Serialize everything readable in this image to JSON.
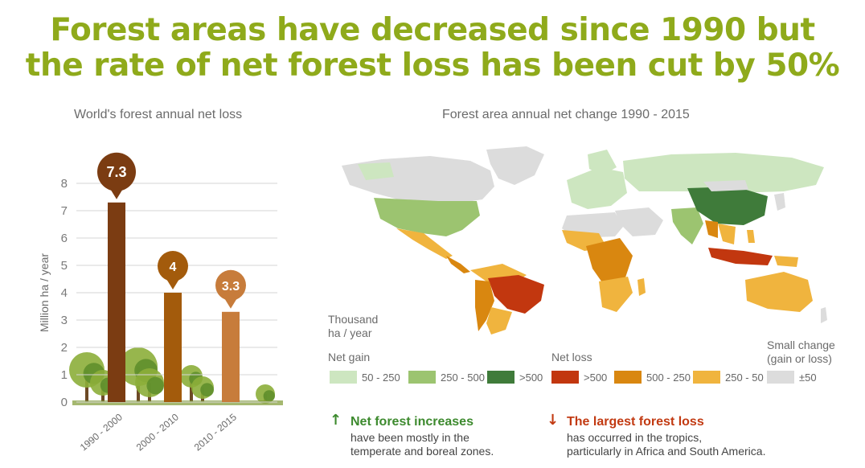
{
  "headline": {
    "line1": "Forest areas have decreased since 1990 but",
    "line2": "the rate of net forest loss has been cut by 50%"
  },
  "bar_section": {
    "title": "World's forest annual net loss"
  },
  "map_section": {
    "title": "Forest area annual net change 1990 - 2015"
  },
  "chart_data": [
    {
      "type": "bar",
      "title": "World's forest annual net loss",
      "categories": [
        "1990 - 2000",
        "2000 - 2010",
        "2010 - 2015"
      ],
      "values": [
        7.3,
        4,
        3.3
      ],
      "data_labels": [
        "7.3",
        "4",
        "3.3"
      ],
      "ylabel": "Million ha / year",
      "ylim": [
        0,
        8
      ],
      "yticks": [
        "0",
        "1",
        "2",
        "3",
        "4",
        "5",
        "6",
        "7",
        "8"
      ],
      "grid": true,
      "colors": [
        "#7b3c12",
        "#a35b0c",
        "#c77c3b"
      ]
    }
  ],
  "legend": {
    "unit_line1": "Thousand",
    "unit_line2": "ha / year",
    "gain_title": "Net gain",
    "loss_title": "Net loss",
    "small_title_line1": "Small change",
    "small_title_line2": "(gain or loss)",
    "items": [
      {
        "label": "50 - 250",
        "color": "#cde6c0"
      },
      {
        "label": "250 - 500",
        "color": "#9cc470"
      },
      {
        "label": ">500",
        "color": "#3f7b3a"
      },
      {
        "label": ">500",
        "color": "#c2370f"
      },
      {
        "label": "500 - 250",
        "color": "#d98710"
      },
      {
        "label": "250 - 50",
        "color": "#f0b43e"
      },
      {
        "label": "±50",
        "color": "#dcdcdc"
      }
    ]
  },
  "notes": {
    "increase": {
      "heading": "Net forest increases",
      "line1": "have been mostly in the",
      "line2": "temperate and boreal zones.",
      "color": "#3d8a2e"
    },
    "loss": {
      "heading": "The largest forest loss",
      "line1": "has occurred in the tropics,",
      "line2": "particularly in Africa and South America.",
      "color": "#c23a12"
    }
  }
}
